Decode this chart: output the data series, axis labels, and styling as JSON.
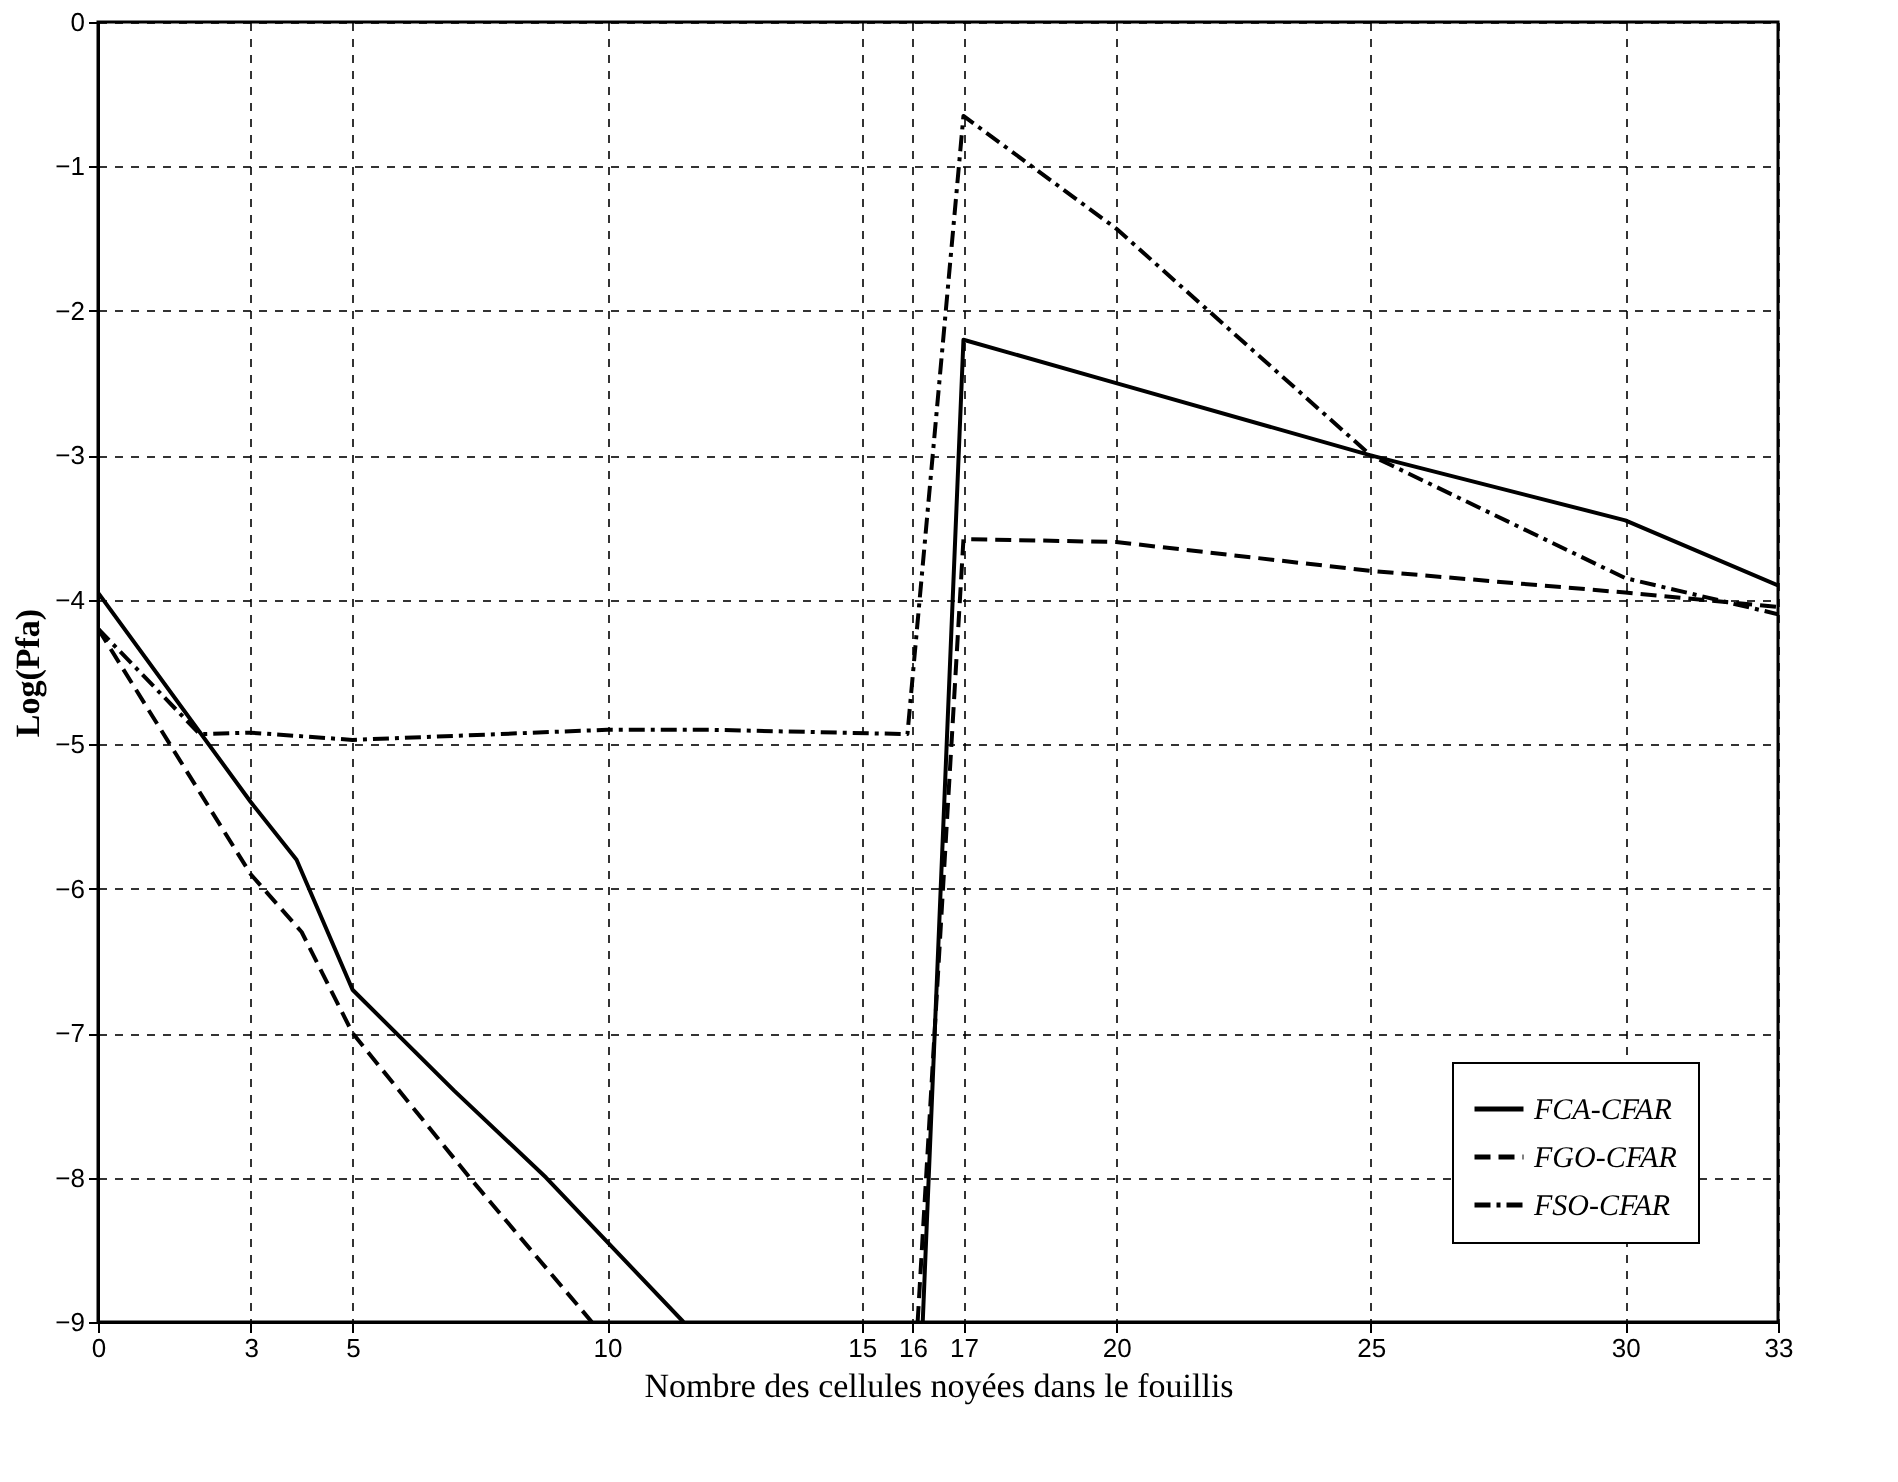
{
  "chart_data": {
    "type": "line",
    "xlabel": "Nombre des cellules noyées dans le fouillis",
    "ylabel": "Log(Pfa)",
    "xlim": [
      0,
      33
    ],
    "xticks": [
      0,
      3,
      5,
      10,
      15,
      16,
      17,
      20,
      25,
      30,
      33
    ],
    "ylim": [
      -9,
      0
    ],
    "yticks": [
      -9,
      -8,
      -7,
      -6,
      -5,
      -4,
      -3,
      -2,
      -1,
      0
    ],
    "grid": true,
    "legend": "bottom right",
    "marker": "none",
    "series": [
      {
        "name": "FCA-CFAR",
        "color": "#000000",
        "line_style": "solid",
        "x": [
          0,
          3,
          3.9,
          5,
          7,
          8.8,
          11.5,
          14,
          16.2,
          17,
          20,
          25,
          30,
          33
        ],
        "values": [
          -3.95,
          -5.4,
          -5.8,
          -6.7,
          -7.4,
          -8.0,
          -9,
          null,
          -9,
          -2.2,
          -2.5,
          -3.0,
          -3.45,
          -3.9
        ]
      },
      {
        "name": "FGO-CFAR",
        "color": "#000000",
        "line_style": "dashed",
        "x": [
          0,
          3,
          4,
          5,
          7.3,
          9.7,
          13,
          16.1,
          17,
          20,
          25,
          30,
          33
        ],
        "values": [
          -4.2,
          -5.9,
          -6.3,
          -7.0,
          -8.0,
          -9,
          null,
          -9,
          -3.58,
          -3.6,
          -3.8,
          -3.95,
          -4.05
        ]
      },
      {
        "name": "FSO-CFAR",
        "color": "#000000",
        "line_style": "dashdot",
        "x": [
          0,
          2,
          3,
          5,
          10,
          12,
          15.9,
          17,
          20,
          25,
          30,
          33
        ],
        "values": [
          -4.2,
          -4.93,
          -4.92,
          -4.97,
          -4.9,
          -4.9,
          -4.93,
          -0.65,
          -1.43,
          -3.0,
          -3.85,
          -4.1
        ]
      }
    ]
  }
}
